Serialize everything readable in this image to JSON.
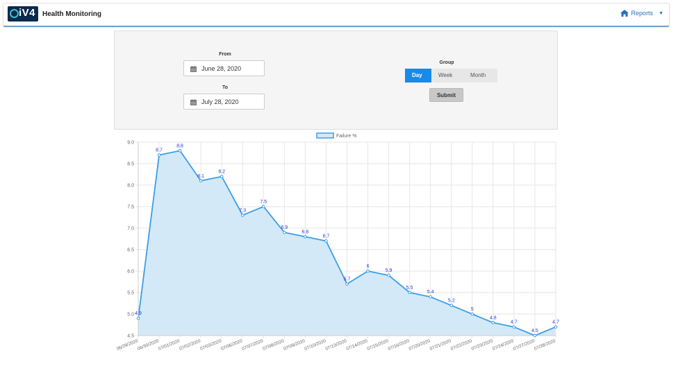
{
  "navbar": {
    "logo_text": "iV4",
    "title": "Health Monitoring",
    "reports_label": "Reports"
  },
  "filters": {
    "from_label": "From",
    "from_value": "June 28, 2020",
    "to_label": "To",
    "to_value": "July 28, 2020",
    "group_label": "Group",
    "group_options": [
      "Day",
      "Week",
      "Month"
    ],
    "group_selected": "Day",
    "submit_label": "Submit"
  },
  "colors": {
    "line": "#3a9ee8",
    "fill": "#d4e9f8",
    "point_label": "#2a35d8",
    "active_button": "#1a8ae8"
  },
  "chart_data": {
    "type": "area",
    "legend": "Failure %",
    "categories": [
      "06/29/2020",
      "06/30/2020",
      "07/01/2020",
      "07/02/2020",
      "07/03/2020",
      "07/06/2020",
      "07/07/2020",
      "07/08/2020",
      "07/09/2020",
      "07/10/2020",
      "07/13/2020",
      "07/14/2020",
      "07/15/2020",
      "07/16/2020",
      "07/20/2020",
      "07/21/2020",
      "07/22/2020",
      "07/23/2020",
      "07/24/2020",
      "07/27/2020",
      "07/28/2020"
    ],
    "series": [
      {
        "name": "Failure %",
        "values": [
          4.9,
          8.7,
          8.8,
          8.1,
          8.2,
          7.3,
          7.5,
          6.9,
          6.8,
          6.7,
          5.7,
          6,
          5.9,
          5.5,
          5.4,
          5.2,
          5,
          4.8,
          4.7,
          4.5,
          4.7
        ]
      }
    ],
    "y_ticks": [
      "4.5",
      "5.0",
      "5.5",
      "6.0",
      "6.5",
      "7.0",
      "7.5",
      "8.0",
      "8.5",
      "9.0"
    ],
    "ylim": [
      4.5,
      9.0
    ],
    "grid": true,
    "legend_position": "top"
  }
}
